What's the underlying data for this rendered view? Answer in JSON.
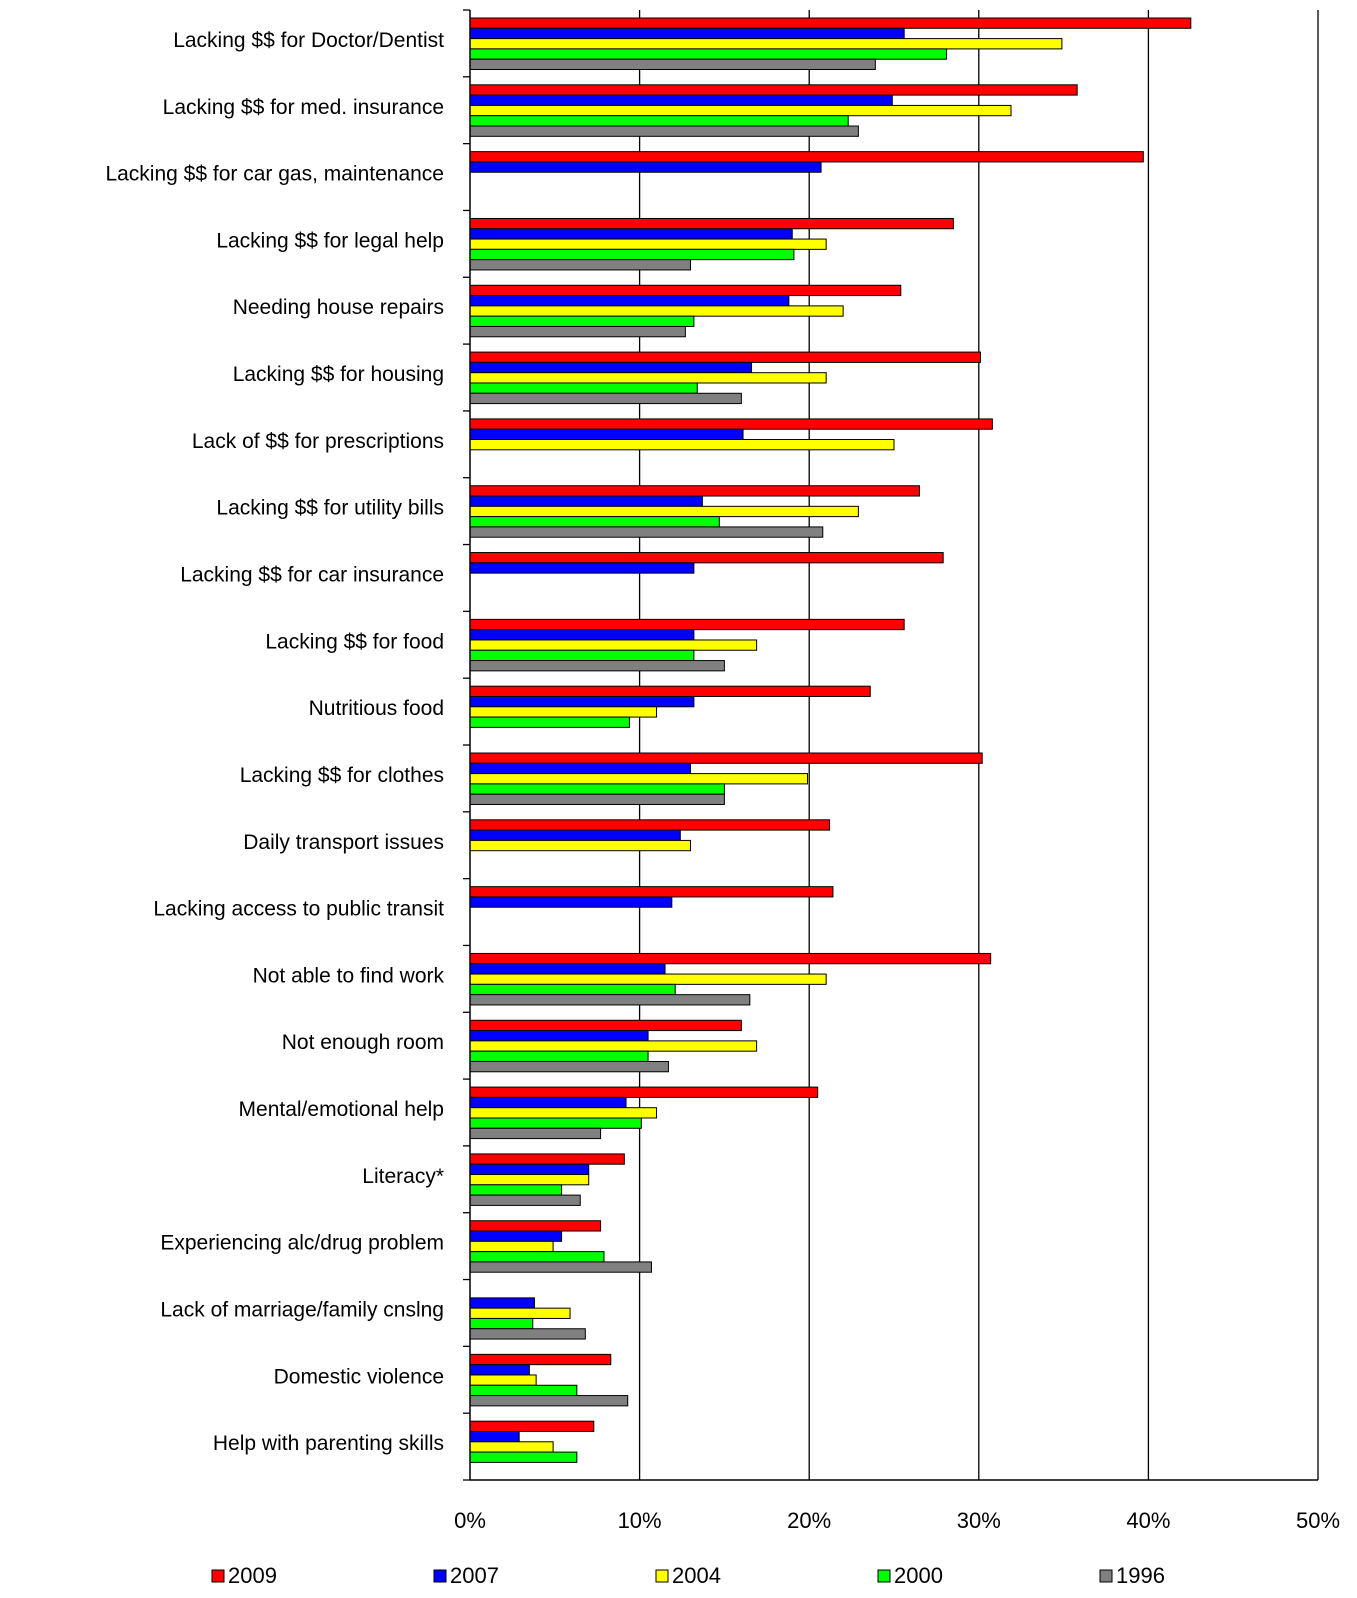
{
  "chart_data": {
    "type": "bar",
    "orientation": "horizontal",
    "title": "",
    "xlabel": "",
    "ylabel": "",
    "xlim": [
      0,
      50
    ],
    "x_ticks": [
      "0%",
      "10%",
      "20%",
      "30%",
      "40%",
      "50%"
    ],
    "grid": "vertical",
    "legend_position": "bottom",
    "categories": [
      "Lacking $$ for Doctor/Dentist",
      "Lacking $$ for med. insurance",
      "Lacking $$ for car gas, maintenance",
      "Lacking $$ for legal help",
      "Needing house repairs",
      "Lacking $$ for housing",
      "Lack of $$ for prescriptions",
      "Lacking $$ for utility  bills",
      "Lacking $$ for car insurance",
      "Lacking $$ for food",
      "Nutritious food",
      "Lacking $$ for clothes",
      "Daily transport issues",
      "Lacking access to public transit",
      "Not able to find work",
      "Not enough room",
      "Mental/emotional help",
      "Literacy*",
      "Experiencing alc/drug problem",
      "Lack of marriage/family  cnslng",
      "Domestic violence",
      "Help with  parenting skills"
    ],
    "series": [
      {
        "name": "2009",
        "color": "#ff0000",
        "values": [
          42.5,
          35.8,
          39.7,
          28.5,
          25.4,
          30.1,
          30.8,
          26.5,
          27.9,
          25.6,
          23.6,
          30.2,
          21.2,
          21.4,
          30.7,
          16.0,
          20.5,
          9.1,
          7.7,
          null,
          8.3,
          7.3
        ]
      },
      {
        "name": "2007",
        "color": "#0000ff",
        "values": [
          25.6,
          24.9,
          20.7,
          19.0,
          18.8,
          16.6,
          16.1,
          13.7,
          13.2,
          13.2,
          13.2,
          13.0,
          12.4,
          11.9,
          11.5,
          10.5,
          9.2,
          7.0,
          5.4,
          3.8,
          3.5,
          2.9
        ]
      },
      {
        "name": "2004",
        "color": "#ffff00",
        "values": [
          34.9,
          31.9,
          null,
          21.0,
          22.0,
          21.0,
          25.0,
          22.9,
          null,
          16.9,
          11.0,
          19.9,
          13.0,
          null,
          21.0,
          16.9,
          11.0,
          7.0,
          4.9,
          5.9,
          3.9,
          4.9
        ]
      },
      {
        "name": "2000",
        "color": "#00ff00",
        "values": [
          28.1,
          22.3,
          null,
          19.1,
          13.2,
          13.4,
          null,
          14.7,
          null,
          13.2,
          9.4,
          15.0,
          null,
          null,
          12.1,
          10.5,
          10.1,
          5.4,
          7.9,
          3.7,
          6.3,
          6.3
        ]
      },
      {
        "name": "1996",
        "color": "#808080",
        "values": [
          23.9,
          22.9,
          null,
          13.0,
          12.7,
          16.0,
          null,
          20.8,
          null,
          15.0,
          null,
          15.0,
          null,
          null,
          16.5,
          11.7,
          7.7,
          6.5,
          10.7,
          6.8,
          9.3,
          null
        ]
      }
    ]
  }
}
